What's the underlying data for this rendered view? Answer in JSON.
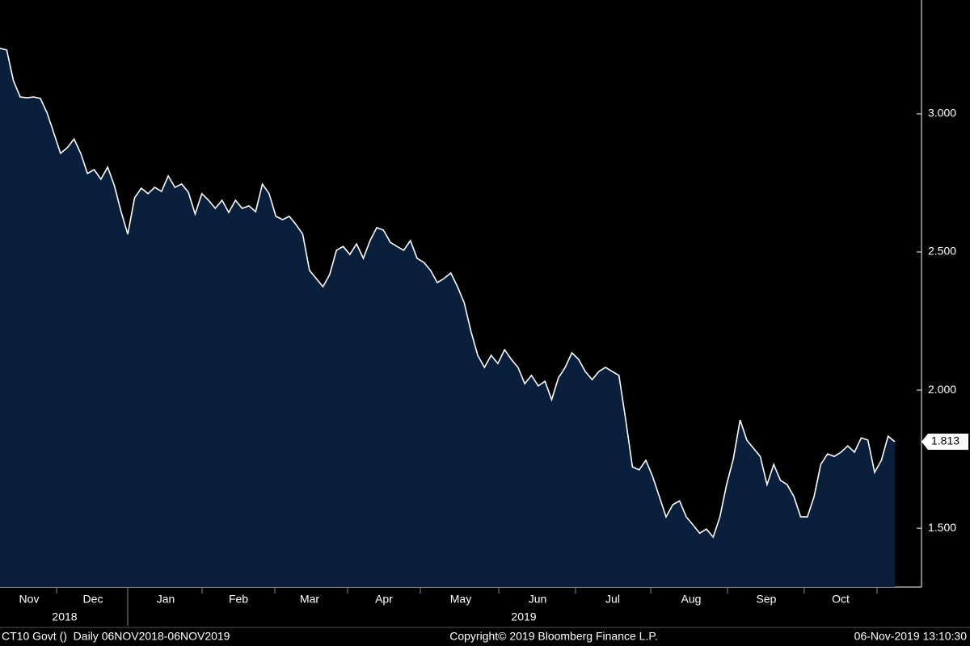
{
  "chart_data": {
    "type": "area",
    "values": [
      3.237,
      3.231,
      3.12,
      3.061,
      3.058,
      3.061,
      3.056,
      3.003,
      2.93,
      2.857,
      2.877,
      2.909,
      2.857,
      2.784,
      2.798,
      2.763,
      2.807,
      2.74,
      2.646,
      2.564,
      2.696,
      2.731,
      2.711,
      2.734,
      2.719,
      2.775,
      2.734,
      2.746,
      2.716,
      2.637,
      2.711,
      2.687,
      2.658,
      2.687,
      2.643,
      2.687,
      2.658,
      2.667,
      2.646,
      2.746,
      2.711,
      2.629,
      2.617,
      2.629,
      2.599,
      2.564,
      2.433,
      2.404,
      2.374,
      2.418,
      2.506,
      2.52,
      2.491,
      2.529,
      2.477,
      2.541,
      2.588,
      2.579,
      2.535,
      2.52,
      2.506,
      2.541,
      2.477,
      2.462,
      2.433,
      2.389,
      2.404,
      2.424,
      2.374,
      2.316,
      2.213,
      2.126,
      2.082,
      2.126,
      2.096,
      2.146,
      2.111,
      2.082,
      2.023,
      2.053,
      2.015,
      2.032,
      1.965,
      2.044,
      2.082,
      2.135,
      2.111,
      2.067,
      2.038,
      2.067,
      2.082,
      2.067,
      2.053,
      1.892,
      1.722,
      1.711,
      1.746,
      1.687,
      1.614,
      1.541,
      1.585,
      1.599,
      1.541,
      1.512,
      1.482,
      1.497,
      1.468,
      1.541,
      1.658,
      1.751,
      1.892,
      1.819,
      1.789,
      1.76,
      1.658,
      1.731,
      1.673,
      1.658,
      1.614,
      1.541,
      1.541,
      1.614,
      1.731,
      1.769,
      1.76,
      1.775,
      1.798,
      1.775,
      1.827,
      1.819,
      1.702,
      1.746,
      1.833,
      1.813
    ],
    "color": "#0a1f3c",
    "line_color": "#ffffff",
    "ylim": [
      1.287,
      3.412
    ],
    "yticks": [
      {
        "value": 3,
        "label": "3.000"
      },
      {
        "value": 2.5,
        "label": "2.500"
      },
      {
        "value": 2,
        "label": "2.000"
      },
      {
        "value": 1.5,
        "label": "1.500"
      }
    ],
    "months": [
      "Nov",
      "Dec",
      "Jan",
      "Feb",
      "Mar",
      "Apr",
      "May",
      "Jun",
      "Jul",
      "Aug",
      "Sep",
      "Oct"
    ],
    "years": [
      "2018",
      "2019"
    ],
    "footer": {
      "left": "CT10 Govt ()  Daily 06NOV2018-06NOV2019",
      "center": "Copyright© 2019 Bloomberg Finance L.P.",
      "right": "06-Nov-2019 13:10:30"
    }
  }
}
